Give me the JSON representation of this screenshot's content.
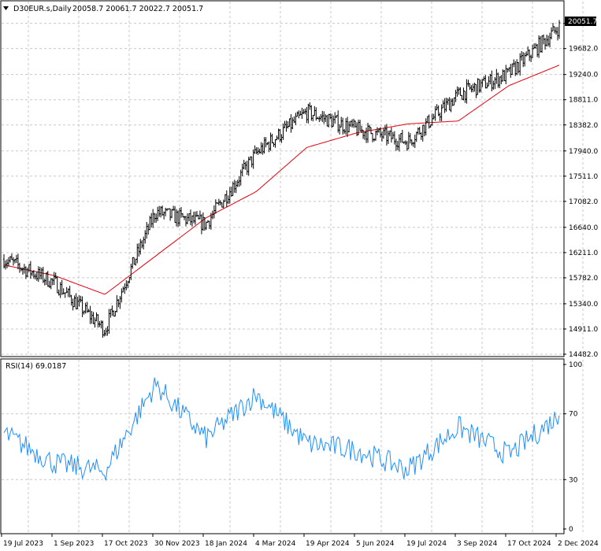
{
  "header": {
    "symbol": "D30EUR.s,Daily",
    "ohlc": "20058.7 20061.7 20022.7 20051.7"
  },
  "rsi_header": "RSI(14) 69.0187",
  "last_price_label": "20051.7",
  "colors": {
    "bars": "#000000",
    "ma": "#e8000b",
    "rsi": "#1e90ff",
    "grid": "#c8c8c8",
    "price_tag_bg": "#000000"
  },
  "chart_data": [
    {
      "type": "ohlc",
      "title": "D30EUR.s,Daily",
      "ylim": [
        14482.0,
        20240.0
      ],
      "y_ticks": [
        "14482.0",
        "14911.0",
        "15340.0",
        "15782.0",
        "16211.0",
        "16640.0",
        "17082.0",
        "17511.0",
        "17940.0",
        "18382.0",
        "18811.0",
        "19240.0",
        "19682.0",
        "20111.0"
      ],
      "x_ticks": [
        "19 Jul 2023",
        "1 Sep 2023",
        "17 Oct 2023",
        "30 Nov 2023",
        "18 Jan 2024",
        "4 Mar 2024",
        "19 Apr 2024",
        "5 Jun 2024",
        "19 Jul 2024",
        "3 Sep 2024",
        "17 Oct 2024",
        "2 Dec 2024"
      ],
      "x": [
        "19 Jul 2023",
        "1 Sep 2023",
        "17 Oct 2023",
        "30 Nov 2023",
        "18 Jan 2024",
        "4 Mar 2024",
        "19 Apr 2024",
        "5 Jun 2024",
        "19 Jul 2024",
        "3 Sep 2024",
        "17 Oct 2024",
        "2 Dec 2024"
      ],
      "price_close": [
        16100,
        15700,
        14900,
        16900,
        16700,
        17900,
        18600,
        18300,
        18100,
        18900,
        19250,
        20051.7
      ],
      "moving_average": [
        16000,
        15820,
        15500,
        16150,
        16800,
        17250,
        18000,
        18250,
        18400,
        18450,
        19050,
        19400
      ],
      "last_price": 20051.7,
      "grid": true
    },
    {
      "type": "line",
      "title": "RSI(14) 69.0187",
      "ylim": [
        0,
        100
      ],
      "y_ticks": [
        "0",
        "30",
        "70",
        "100"
      ],
      "x": [
        "19 Jul 2023",
        "1 Sep 2023",
        "17 Oct 2023",
        "30 Nov 2023",
        "18 Jan 2024",
        "4 Mar 2024",
        "19 Apr 2024",
        "5 Jun 2024",
        "19 Jul 2024",
        "3 Sep 2024",
        "17 Oct 2024",
        "2 Dec 2024"
      ],
      "values": [
        58,
        40,
        35,
        88,
        55,
        82,
        52,
        48,
        36,
        62,
        45,
        69.0
      ],
      "last_value": 69.0187,
      "grid": true
    }
  ]
}
